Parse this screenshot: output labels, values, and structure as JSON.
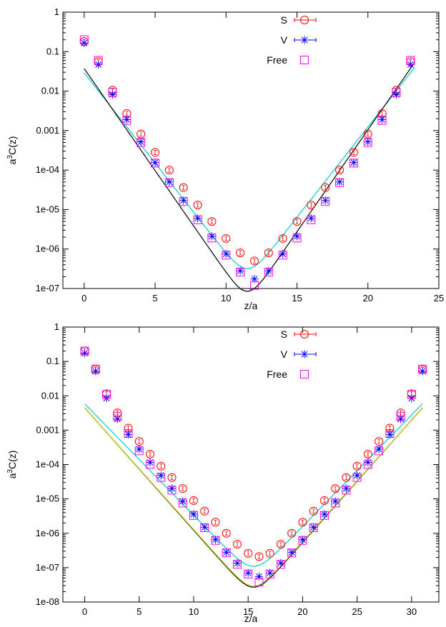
{
  "chart_data": [
    {
      "type": "scatter",
      "xlabel": "z/a",
      "ylabel_base": "a",
      "ylabel_sup": "3",
      "ylabel_rest": "C(z)",
      "xlim": [
        -1.5,
        25
      ],
      "ylim": [
        1e-07,
        1
      ],
      "log_y": true,
      "grid": false,
      "legend_position": "top-center",
      "xticks": [
        0,
        5,
        10,
        15,
        20,
        25
      ],
      "xtick_labels": [
        "0",
        "5",
        "10",
        "15",
        "20",
        "25"
      ],
      "yticks": [
        1e-07,
        1e-06,
        1e-05,
        0.0001,
        0.001,
        0.01,
        0.1,
        1
      ],
      "ytick_labels": [
        "1e-07",
        "1e-06",
        "1e-05",
        "1e-04",
        "0.001",
        "0.01",
        "0.1",
        "1"
      ],
      "series": [
        {
          "name": "S",
          "color": "#ff0000",
          "marker": "circle",
          "x": [
            0,
            1,
            2,
            3,
            4,
            5,
            6,
            7,
            8,
            9,
            10,
            11,
            12,
            13,
            14,
            15,
            16,
            17,
            18,
            19,
            20,
            21,
            22,
            23
          ],
          "y": [
            0.18,
            0.056,
            0.0105,
            0.0027,
            0.00082,
            0.00028,
            0.0001,
            3.6e-05,
            1.3e-05,
            5e-06,
            1.85e-06,
            8e-07,
            5e-07,
            8e-07,
            1.85e-06,
            5e-06,
            1.3e-05,
            3.6e-05,
            0.0001,
            0.00028,
            0.00082,
            0.0027,
            0.0105,
            0.056
          ]
        },
        {
          "name": "V",
          "color": "#0000ff",
          "marker": "star",
          "x": [
            0,
            1,
            2,
            3,
            4,
            5,
            6,
            7,
            8,
            9,
            10,
            11,
            12,
            13,
            14,
            15,
            16,
            17,
            18,
            19,
            20,
            21,
            22,
            23
          ],
          "y": [
            0.165,
            0.047,
            0.0082,
            0.0019,
            0.00052,
            0.000155,
            5e-05,
            1.7e-05,
            6e-06,
            2.1e-06,
            7.5e-07,
            2.8e-07,
            1.75e-07,
            2.8e-07,
            7.5e-07,
            2.1e-06,
            6e-06,
            1.7e-05,
            5e-05,
            0.000155,
            0.00052,
            0.0019,
            0.0082,
            0.047
          ]
        },
        {
          "name": "Free",
          "color": "#ff00ff",
          "marker": "square",
          "x": [
            0,
            1,
            2,
            3,
            4,
            5,
            6,
            7,
            8,
            9,
            10,
            11,
            12,
            13,
            14,
            15,
            16,
            17,
            18,
            19,
            20,
            21,
            22,
            23
          ],
          "y": [
            0.2,
            0.06,
            0.0092,
            0.0018,
            0.0005,
            0.00015,
            4.8e-05,
            1.6e-05,
            5.5e-06,
            1.9e-06,
            7e-07,
            2.6e-07,
            1.2e-07,
            2.6e-07,
            7e-07,
            1.9e-06,
            5.5e-06,
            1.6e-05,
            4.8e-05,
            0.00015,
            0.0005,
            0.0018,
            0.0092,
            0.06
          ]
        }
      ],
      "fit_lines": [
        {
          "color": "#00cccc",
          "x0": 0,
          "x1": 23.3,
          "xmid": 11.5,
          "amp": 3.2e-07,
          "mass": 1.053,
          "period": 24
        },
        {
          "color": "#000000",
          "x0": 0,
          "x1": 23.3,
          "xmid": 11.5,
          "amp": 8.5e-08,
          "mass": 1.19,
          "period": 24
        }
      ]
    },
    {
      "type": "scatter",
      "xlabel": "z/a",
      "ylabel_base": "a",
      "ylabel_sup": "3",
      "ylabel_rest": "C(z)",
      "xlim": [
        -2,
        32.5
      ],
      "ylim": [
        1e-08,
        1
      ],
      "log_y": true,
      "grid": false,
      "legend_position": "top-center",
      "xticks": [
        0,
        5,
        10,
        15,
        20,
        25,
        30
      ],
      "xtick_labels": [
        "0",
        "5",
        "10",
        "15",
        "20",
        "25",
        "30"
      ],
      "yticks": [
        1e-08,
        1e-07,
        1e-06,
        1e-05,
        0.0001,
        0.001,
        0.01,
        0.1,
        1
      ],
      "ytick_labels": [
        "1e-08",
        "1e-07",
        "1e-06",
        "1e-05",
        "1e-04",
        "0.001",
        "0.01",
        "0.1",
        "1"
      ],
      "series": [
        {
          "name": "S",
          "color": "#ff0000",
          "marker": "circle",
          "x": [
            0,
            1,
            2,
            3,
            4,
            5,
            6,
            7,
            8,
            9,
            10,
            11,
            12,
            13,
            14,
            15,
            16,
            17,
            18,
            19,
            20,
            21,
            22,
            23,
            24,
            25,
            26,
            27,
            28,
            29,
            30,
            31
          ],
          "y": [
            0.2,
            0.058,
            0.0115,
            0.0032,
            0.00115,
            0.00047,
            0.0002,
            9e-05,
            4.2e-05,
            2e-05,
            9e-06,
            4.4e-06,
            2.1e-06,
            1e-06,
            4.8e-07,
            2.6e-07,
            2.1e-07,
            2.6e-07,
            4.8e-07,
            1e-06,
            2.1e-06,
            4.4e-06,
            9e-06,
            2e-05,
            4.2e-05,
            9e-05,
            0.0002,
            0.00047,
            0.00115,
            0.0032,
            0.0115,
            0.058
          ]
        },
        {
          "name": "V",
          "color": "#0000ff",
          "marker": "star",
          "x": [
            0,
            1,
            2,
            3,
            4,
            5,
            6,
            7,
            8,
            9,
            10,
            11,
            12,
            13,
            14,
            15,
            16,
            17,
            18,
            19,
            20,
            21,
            22,
            23,
            24,
            25,
            26,
            27,
            28,
            29,
            30,
            31
          ],
          "y": [
            0.175,
            0.052,
            0.0085,
            0.0021,
            0.00075,
            0.00028,
            0.000115,
            4.8e-05,
            2e-05,
            8.5e-06,
            3.6e-06,
            1.5e-06,
            6.5e-07,
            2.8e-07,
            1.35e-07,
            7e-08,
            5.5e-08,
            7e-08,
            1.35e-07,
            2.8e-07,
            6.5e-07,
            1.5e-06,
            3.6e-06,
            8.5e-06,
            2e-05,
            4.8e-05,
            0.000115,
            0.00028,
            0.00075,
            0.0021,
            0.0085,
            0.052
          ]
        },
        {
          "name": "Free",
          "color": "#ff00ff",
          "marker": "square",
          "x": [
            0,
            1,
            2,
            3,
            4,
            5,
            6,
            7,
            8,
            9,
            10,
            11,
            12,
            13,
            14,
            15,
            16,
            17,
            18,
            19,
            20,
            21,
            22,
            23,
            24,
            25,
            26,
            27,
            28,
            29,
            30,
            31
          ],
          "y": [
            0.2,
            0.06,
            0.011,
            0.0025,
            0.0008,
            0.00025,
            0.0001,
            4.2e-05,
            1.8e-05,
            7.6e-06,
            3.3e-06,
            1.45e-06,
            6.2e-07,
            2.7e-07,
            1.25e-07,
            6.5e-08,
            3.8e-08,
            6.5e-08,
            1.25e-07,
            2.7e-07,
            6.2e-07,
            1.45e-06,
            3.3e-06,
            7.6e-06,
            1.8e-05,
            4.2e-05,
            0.0001,
            0.00025,
            0.0008,
            0.0025,
            0.011,
            0.06
          ]
        }
      ],
      "fit_lines": [
        {
          "color": "#00cccc",
          "x0": 0,
          "x1": 31,
          "xmid": 15.5,
          "amp": 1.1e-07,
          "mass": 0.747,
          "period": 32
        },
        {
          "color": "#000000",
          "x0": 0,
          "x1": 31,
          "xmid": 15.5,
          "amp": 2.7e-08,
          "mass": 0.82,
          "period": 32
        },
        {
          "color": "#cccc00",
          "x0": 0,
          "x1": 31,
          "xmid": 15.5,
          "amp": 2.9e-08,
          "mass": 0.815,
          "period": 32
        }
      ]
    }
  ]
}
